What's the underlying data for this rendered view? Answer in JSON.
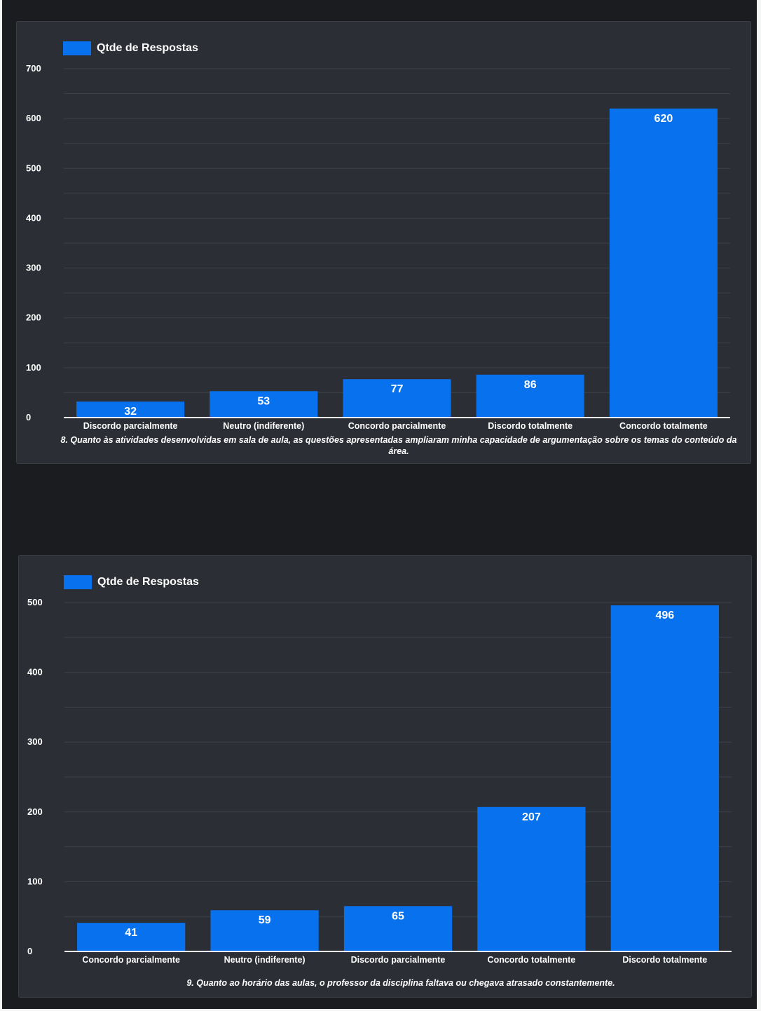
{
  "colors": {
    "background": "#1b1c20",
    "panel": "#2c2e36",
    "bar": "#0872ee",
    "grid": "#3d4049",
    "text": "#ffffff"
  },
  "chart_data": [
    {
      "type": "bar",
      "legend": "Qtde de Respostas",
      "legend_position": "top-left",
      "categories": [
        "Discordo parcialmente",
        "Neutro (indiferente)",
        "Concordo parcialmente",
        "Discordo totalmente",
        "Concordo totalmente"
      ],
      "values": [
        32,
        53,
        77,
        86,
        620
      ],
      "data_labels": [
        "32",
        "53",
        "77",
        "86",
        "620"
      ],
      "ylim": [
        0,
        700
      ],
      "yticks": [
        "0",
        "100",
        "200",
        "300",
        "400",
        "500",
        "600",
        "700"
      ],
      "grid": true,
      "caption": "8. Quanto às atividades desenvolvidas em sala de aula, as questões apresentadas ampliaram minha capacidade de argumentação sobre os temas do conteúdo da área."
    },
    {
      "type": "bar",
      "legend": "Qtde de Respostas",
      "legend_position": "top-left",
      "categories": [
        "Concordo parcialmente",
        "Neutro (indiferente)",
        "Discordo parcialmente",
        "Concordo totalmente",
        "Discordo totalmente"
      ],
      "values": [
        41,
        59,
        65,
        207,
        496
      ],
      "data_labels": [
        "41",
        "59",
        "65",
        "207",
        "496"
      ],
      "ylim": [
        0,
        500
      ],
      "yticks": [
        "0",
        "100",
        "200",
        "300",
        "400",
        "500"
      ],
      "grid": true,
      "caption": "9. Quanto ao horário das aulas, o professor da disciplina faltava ou chegava atrasado constantemente."
    }
  ]
}
